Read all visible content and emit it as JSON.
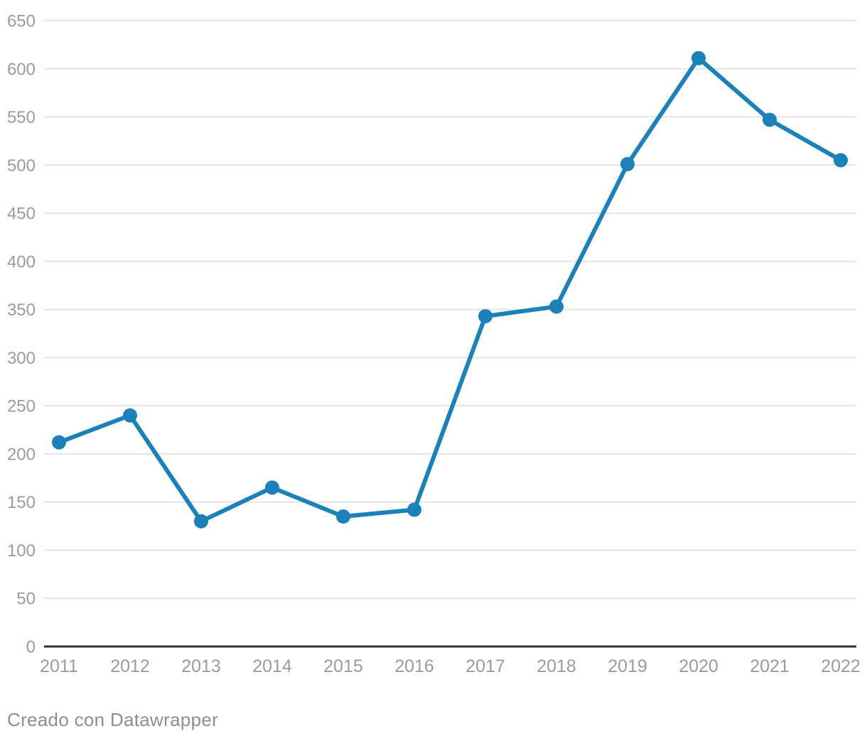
{
  "chart_data": {
    "type": "line",
    "title": "",
    "xlabel": "",
    "ylabel": "",
    "categories": [
      "2011",
      "2012",
      "2013",
      "2014",
      "2015",
      "2016",
      "2017",
      "2018",
      "2019",
      "2020",
      "2021",
      "2022"
    ],
    "series": [
      {
        "name": "series-1",
        "values": [
          212,
          240,
          130,
          165,
          135,
          142,
          343,
          353,
          501,
          611,
          547,
          505
        ]
      }
    ],
    "ylim": [
      0,
      650
    ],
    "yticks": [
      0,
      50,
      100,
      150,
      200,
      250,
      300,
      350,
      400,
      450,
      500,
      550,
      600,
      650
    ],
    "grid": "horizontal",
    "legend_position": "none",
    "colors": {
      "line": "#1a81b9",
      "marker": "#1a81b9",
      "gridline": "#e4e4e4",
      "zero_axis": "#2f2f2f",
      "tick_label": "#9b9b9b"
    },
    "marker_radius": 10,
    "line_width": 6
  },
  "footer": {
    "text": "Creado con Datawrapper"
  }
}
